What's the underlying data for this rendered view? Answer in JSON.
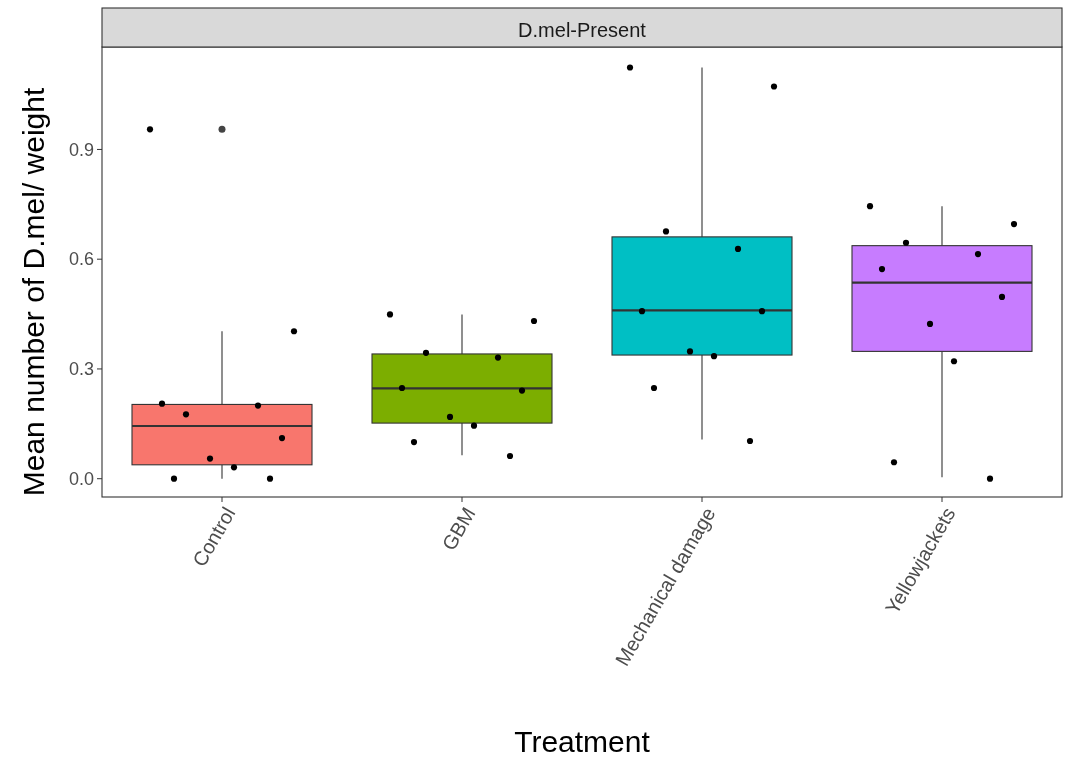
{
  "chart_data": {
    "type": "box",
    "title": "D.mel-Present",
    "xlabel": "Treatment",
    "ylabel": "Mean number of D.mel/ weight",
    "categories": [
      "Control",
      "GBM",
      "Mechanical damage",
      "Yellowjackets"
    ],
    "ylim": [
      -0.05,
      1.18
    ],
    "yticks": [
      {
        "value": 0,
        "label": "0.0"
      },
      {
        "value": 0.3,
        "label": "0.3"
      },
      {
        "value": 0.6,
        "label": "0.6"
      },
      {
        "value": 0.9,
        "label": "0.9"
      }
    ],
    "grid": false,
    "series": [
      {
        "colors": [
          "#f8766d",
          "#7cae00",
          "#00bfc4",
          "#c77cff"
        ],
        "boxes": [
          {
            "low": 0.0,
            "q1": 0.038,
            "median": 0.144,
            "q3": 0.203,
            "high": 0.403,
            "outliers": [
              0.955
            ]
          },
          {
            "low": 0.064,
            "q1": 0.152,
            "median": 0.247,
            "q3": 0.341,
            "high": 0.449
          },
          {
            "low": 0.107,
            "q1": 0.338,
            "median": 0.46,
            "q3": 0.661,
            "high": 1.124
          },
          {
            "low": 0.004,
            "q1": 0.348,
            "median": 0.536,
            "q3": 0.637,
            "high": 0.745
          }
        ]
      },
      {
        "type": "scatter",
        "color": "#000000",
        "marker": "circle",
        "x": [
          "Control",
          "Control",
          "Control",
          "Control",
          "Control",
          "Control",
          "Control",
          "Control",
          "Control",
          "Control",
          "GBM",
          "GBM",
          "GBM",
          "GBM",
          "GBM",
          "GBM",
          "GBM",
          "GBM",
          "GBM",
          "GBM",
          "Mechanical damage",
          "Mechanical damage",
          "Mechanical damage",
          "Mechanical damage",
          "Mechanical damage",
          "Mechanical damage",
          "Mechanical damage",
          "Mechanical damage",
          "Mechanical damage",
          "Mechanical damage",
          "Yellowjackets",
          "Yellowjackets",
          "Yellowjackets",
          "Yellowjackets",
          "Yellowjackets",
          "Yellowjackets",
          "Yellowjackets",
          "Yellowjackets",
          "Yellowjackets",
          "Yellowjackets"
        ],
        "values": [
          0.955,
          0.403,
          0.176,
          0.2,
          0.205,
          0.111,
          0.055,
          0.031,
          0.0,
          0.0,
          0.449,
          0.431,
          0.344,
          0.331,
          0.248,
          0.241,
          0.169,
          0.145,
          0.1,
          0.062,
          1.124,
          1.072,
          0.676,
          0.628,
          0.458,
          0.458,
          0.348,
          0.335,
          0.248,
          0.103,
          0.745,
          0.696,
          0.645,
          0.614,
          0.573,
          0.497,
          0.423,
          0.321,
          0.045,
          0.0
        ]
      }
    ]
  }
}
